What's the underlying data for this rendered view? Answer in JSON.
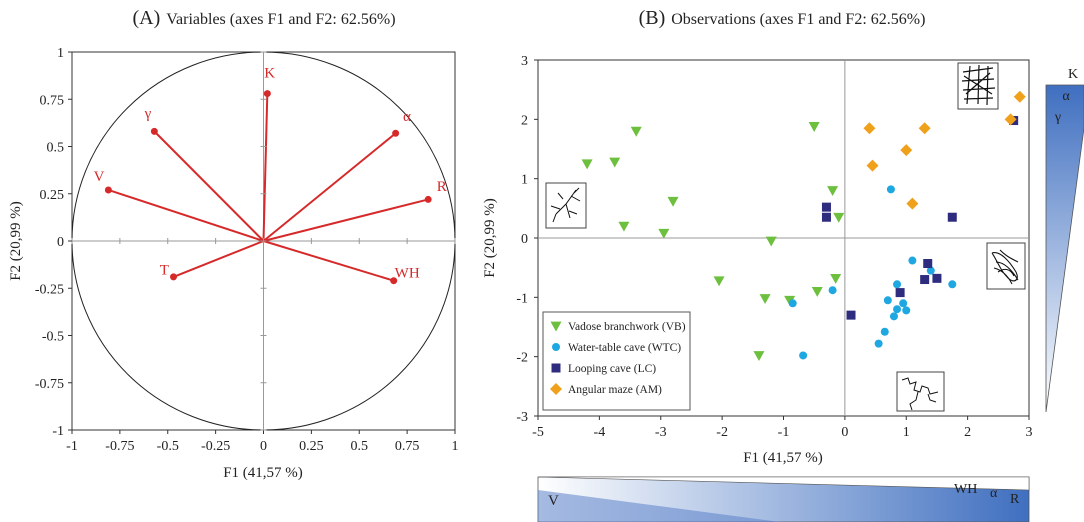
{
  "chart_data": [
    {
      "type": "scatter",
      "subtype": "correlation-circle",
      "title_letter": "(A)",
      "title": "Variables (axes F1 and F2: 62.56%)",
      "xlabel": "F1 (41,57 %)",
      "ylabel": "F2 (20,99 %)",
      "xlim": [
        -1,
        1
      ],
      "ylim": [
        -1,
        1
      ],
      "xticks": [
        "-1",
        "-0.75",
        "-0.5",
        "-0.25",
        "0",
        "0.25",
        "0.5",
        "0.75",
        "1"
      ],
      "yticks": [
        "-1",
        "-0.75",
        "-0.5",
        "-0.25",
        "0",
        "0.25",
        "0.5",
        "0.75",
        "1"
      ],
      "grid": false,
      "line_color": "#d62a2a",
      "variables": [
        {
          "label": "K",
          "x": 0.02,
          "y": 0.78
        },
        {
          "label": "γ",
          "x": -0.57,
          "y": 0.58
        },
        {
          "label": "α",
          "x": 0.69,
          "y": 0.57
        },
        {
          "label": "V",
          "x": -0.81,
          "y": 0.27
        },
        {
          "label": "R",
          "x": 0.86,
          "y": 0.22
        },
        {
          "label": "T",
          "x": -0.47,
          "y": -0.19
        },
        {
          "label": "WH",
          "x": 0.68,
          "y": -0.21
        }
      ]
    },
    {
      "type": "scatter",
      "title_letter": "(B)",
      "title": "Observations (axes F1 and F2: 62.56%)",
      "xlabel": "F1 (41,57 %)",
      "ylabel": "F2 (20,99 %)",
      "xlim": [
        -5,
        3
      ],
      "ylim": [
        -3,
        3
      ],
      "xticks": [
        "-5",
        "-4",
        "-3",
        "-2",
        "-1",
        "0",
        "1",
        "2",
        "3"
      ],
      "yticks": [
        "-3",
        "-2",
        "-1",
        "0",
        "1",
        "2",
        "3"
      ],
      "grid": false,
      "legend_position": "bottom-left",
      "series": [
        {
          "name": "Vadose branchwork (VB)",
          "marker": "triangle-down",
          "color": "#6dbf3e",
          "points": [
            [
              -4.2,
              1.25
            ],
            [
              -3.75,
              1.28
            ],
            [
              -3.4,
              1.8
            ],
            [
              -3.6,
              0.2
            ],
            [
              -2.8,
              0.62
            ],
            [
              -2.95,
              0.08
            ],
            [
              -0.5,
              1.88
            ],
            [
              -0.2,
              0.8
            ],
            [
              -0.1,
              0.35
            ],
            [
              -1.2,
              -0.05
            ],
            [
              -2.05,
              -0.72
            ],
            [
              -1.3,
              -1.02
            ],
            [
              -0.9,
              -1.05
            ],
            [
              -0.45,
              -0.9
            ],
            [
              -0.15,
              -0.68
            ],
            [
              -1.4,
              -1.98
            ]
          ]
        },
        {
          "name": "Water-table cave (WTC)",
          "marker": "circle",
          "color": "#1ea7e1",
          "points": [
            [
              0.75,
              0.82
            ],
            [
              -0.85,
              -1.1
            ],
            [
              -0.2,
              -0.88
            ],
            [
              -0.68,
              -1.98
            ],
            [
              1.1,
              -0.38
            ],
            [
              0.85,
              -0.78
            ],
            [
              1.4,
              -0.55
            ],
            [
              1.75,
              -0.78
            ],
            [
              0.7,
              -1.05
            ],
            [
              0.95,
              -1.1
            ],
            [
              0.85,
              -1.2
            ],
            [
              1.0,
              -1.22
            ],
            [
              0.8,
              -1.32
            ],
            [
              0.65,
              -1.58
            ],
            [
              0.55,
              -1.78
            ]
          ]
        },
        {
          "name": "Looping cave (LC)",
          "marker": "square",
          "color": "#2e2c7e",
          "points": [
            [
              2.75,
              1.98
            ],
            [
              1.75,
              0.35
            ],
            [
              -0.3,
              0.52
            ],
            [
              -0.3,
              0.35
            ],
            [
              1.35,
              -0.43
            ],
            [
              1.3,
              -0.7
            ],
            [
              1.5,
              -0.68
            ],
            [
              0.9,
              -0.92
            ],
            [
              0.1,
              -1.3
            ]
          ]
        },
        {
          "name": "Angular maze (AM)",
          "marker": "diamond",
          "color": "#f0a11c",
          "points": [
            [
              2.85,
              2.38
            ],
            [
              2.7,
              2.0
            ],
            [
              0.4,
              1.85
            ],
            [
              1.3,
              1.85
            ],
            [
              1.0,
              1.48
            ],
            [
              0.45,
              1.22
            ],
            [
              1.1,
              0.58
            ]
          ]
        }
      ]
    }
  ],
  "gradients": {
    "right_labels": [
      "K",
      "α",
      "γ"
    ],
    "bottom_left_label": "V",
    "bottom_right_labels": [
      "WH",
      "α",
      "R"
    ],
    "dark_color": "#3f6fc0",
    "light_color": "#ffffff"
  },
  "insets": {
    "top_left": "dendritic-pattern-icon",
    "top_right": "maze-grid-pattern-icon",
    "middle_right": "looping-network-pattern-icon",
    "bottom_right": "single-passage-pattern-icon"
  }
}
